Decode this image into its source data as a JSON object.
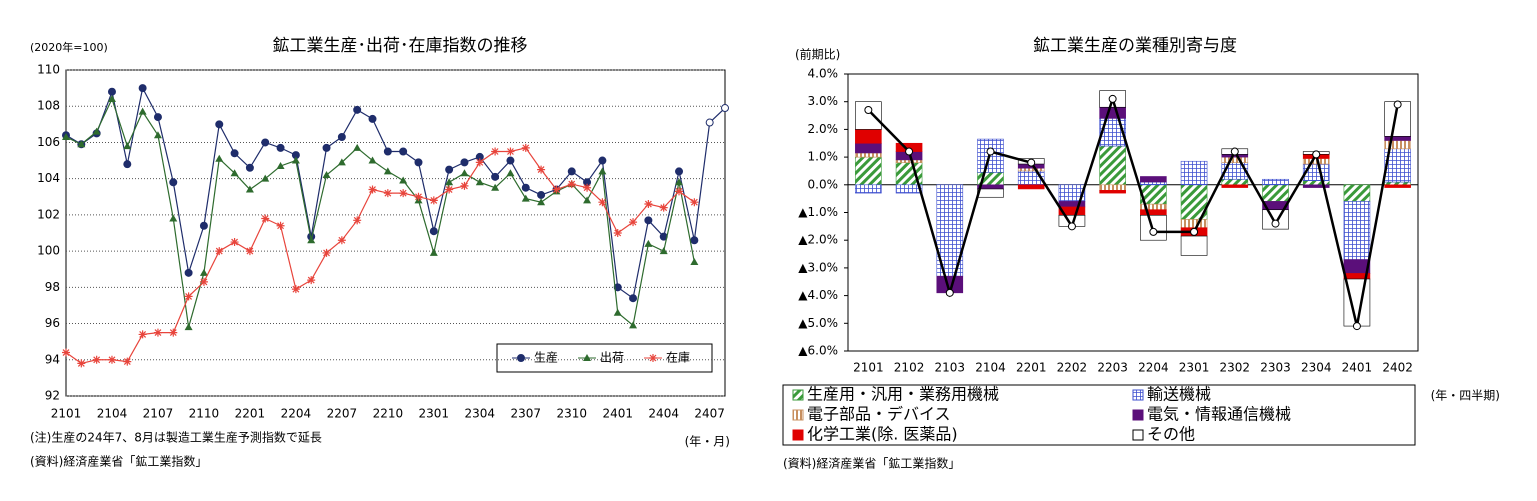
{
  "chart_data": [
    {
      "type": "line",
      "title": "鉱工業生産･出荷･在庫指数の推移",
      "y_unit_label": "(2020年=100)",
      "x_unit_label": "(年・月)",
      "notes": [
        "(注)生産の24年7、8月は製造工業生産予測指数で延長",
        "(資料)経済産業省「鉱工業指数」"
      ],
      "categories": [
        "2101",
        null,
        null,
        "2104",
        null,
        null,
        "2107",
        null,
        null,
        "2110",
        null,
        null,
        "2201",
        null,
        null,
        "2204",
        null,
        null,
        "2207",
        null,
        null,
        "2210",
        null,
        null,
        "2301",
        null,
        null,
        "2304",
        null,
        null,
        "2307",
        null,
        null,
        "2310",
        null,
        null,
        "2401",
        null,
        null,
        "2404",
        null,
        null,
        "2407",
        null
      ],
      "series": [
        {
          "name": "生産",
          "color": "#1f2d6b",
          "marker": "circle",
          "hollow_from_index": 42,
          "values": [
            106.4,
            105.9,
            106.5,
            108.8,
            104.8,
            109.0,
            107.4,
            103.8,
            98.8,
            101.4,
            107.0,
            105.4,
            104.6,
            106.0,
            105.7,
            105.3,
            100.8,
            105.7,
            106.3,
            107.8,
            107.3,
            105.5,
            105.5,
            104.9,
            101.1,
            104.5,
            104.9,
            105.2,
            104.1,
            105.0,
            103.5,
            103.1,
            103.4,
            104.4,
            103.8,
            105.0,
            98.0,
            97.4,
            101.7,
            100.8,
            104.4,
            100.6,
            107.1,
            107.9
          ]
        },
        {
          "name": "出荷",
          "color": "#2e6b2e",
          "marker": "triangle",
          "values": [
            106.3,
            105.9,
            106.6,
            108.4,
            105.8,
            107.7,
            106.4,
            101.8,
            95.8,
            98.8,
            105.1,
            104.3,
            103.4,
            104.0,
            104.7,
            105.0,
            100.6,
            104.2,
            104.9,
            105.7,
            105.0,
            104.4,
            103.9,
            102.8,
            99.9,
            103.8,
            104.3,
            103.8,
            103.5,
            104.3,
            102.9,
            102.7,
            103.3,
            103.7,
            102.8,
            104.4,
            96.6,
            95.9,
            100.4,
            100.0,
            103.8,
            99.4,
            null,
            null
          ]
        },
        {
          "name": "在庫",
          "color": "#e8453c",
          "marker": "asterisk",
          "values": [
            94.4,
            93.8,
            94.0,
            94.0,
            93.9,
            95.4,
            95.5,
            95.5,
            97.5,
            98.3,
            100.0,
            100.5,
            100.0,
            101.8,
            101.4,
            97.9,
            98.4,
            99.9,
            100.6,
            101.7,
            103.4,
            103.2,
            103.2,
            103.0,
            102.8,
            103.4,
            103.6,
            104.9,
            105.5,
            105.5,
            105.7,
            104.5,
            103.4,
            103.7,
            103.5,
            102.7,
            101.0,
            101.6,
            102.6,
            102.4,
            103.3,
            102.7,
            null,
            null
          ]
        }
      ],
      "ylim": [
        92,
        110
      ],
      "yticks": [
        92,
        94,
        96,
        98,
        100,
        102,
        104,
        106,
        108,
        110
      ],
      "grid": true,
      "legend": "lower-right"
    },
    {
      "type": "stacked_bar",
      "title": "鉱工業生産の業種別寄与度",
      "y_unit_label": "(前期比)",
      "x_unit_label": "(年・四半期)",
      "notes": [
        "(資料)経済産業省「鉱工業指数」"
      ],
      "categories": [
        "2101",
        "2102",
        "2103",
        "2104",
        "2201",
        "2202",
        "2203",
        "2204",
        "2301",
        "2302",
        "2303",
        "2304",
        "2401",
        "2402"
      ],
      "series": [
        {
          "name": "生産用・汎用・業務用機械",
          "color": "#3a9a3a",
          "pattern": "diag",
          "values": [
            1.0,
            0.8,
            0,
            0.45,
            0,
            0,
            1.4,
            -0.7,
            -1.25,
            0.2,
            -0.6,
            0.15,
            -0.6,
            0.1
          ]
        },
        {
          "name": "輸送機械",
          "color": "#3d4fcf",
          "pattern": "grid",
          "values": [
            -0.3,
            -0.3,
            -3.3,
            1.2,
            0.5,
            -0.6,
            1.0,
            0.1,
            0.85,
            0.6,
            0.2,
            0.6,
            -2.1,
            1.2
          ]
        },
        {
          "name": "電子部品・デバイス",
          "color": "#c89060",
          "pattern": "hstripe",
          "values": [
            0.15,
            0.1,
            0,
            0,
            0.1,
            0,
            -0.2,
            -0.2,
            -0.3,
            0.2,
            0,
            0.2,
            0,
            0.3
          ]
        },
        {
          "name": "電気・情報通信機械",
          "color": "#5b0f7a",
          "pattern": "solid",
          "values": [
            0.35,
            0.3,
            -0.6,
            -0.15,
            0.15,
            -0.2,
            0.4,
            0.2,
            0,
            0.1,
            -0.3,
            -0.1,
            -0.5,
            0.15
          ]
        },
        {
          "name": "化学工業(除. 医薬品)",
          "color": "#e00000",
          "pattern": "solid",
          "values": [
            0.5,
            0.3,
            0,
            0,
            -0.15,
            -0.3,
            -0.1,
            -0.2,
            -0.3,
            -0.1,
            0,
            0.15,
            -0.2,
            -0.1
          ]
        },
        {
          "name": "その他",
          "color": "#ffffff",
          "pattern": "none",
          "values": [
            1.0,
            0,
            0,
            -0.3,
            0.2,
            -0.4,
            0.6,
            -0.9,
            -0.7,
            0.2,
            -0.7,
            0.1,
            -1.7,
            1.25
          ]
        }
      ],
      "total": {
        "color": "#000000",
        "values": [
          2.7,
          1.2,
          -3.9,
          1.2,
          0.8,
          -1.5,
          3.1,
          -1.7,
          -1.7,
          1.2,
          -1.4,
          1.1,
          -5.1,
          2.9
        ]
      },
      "ylim": [
        -6,
        4
      ],
      "yticks": [
        {
          "value": 4,
          "label": "4.0%"
        },
        {
          "value": 3,
          "label": "3.0%"
        },
        {
          "value": 2,
          "label": "2.0%"
        },
        {
          "value": 1,
          "label": "1.0%"
        },
        {
          "value": 0,
          "label": "0.0%"
        },
        {
          "value": -1,
          "label": "▲1.0%"
        },
        {
          "value": -2,
          "label": "▲2.0%"
        },
        {
          "value": -3,
          "label": "▲3.0%"
        },
        {
          "value": -4,
          "label": "▲4.0%"
        },
        {
          "value": -5,
          "label": "▲5.0%"
        },
        {
          "value": -6,
          "label": "▲6.0%"
        }
      ],
      "legend": "bottom"
    }
  ]
}
